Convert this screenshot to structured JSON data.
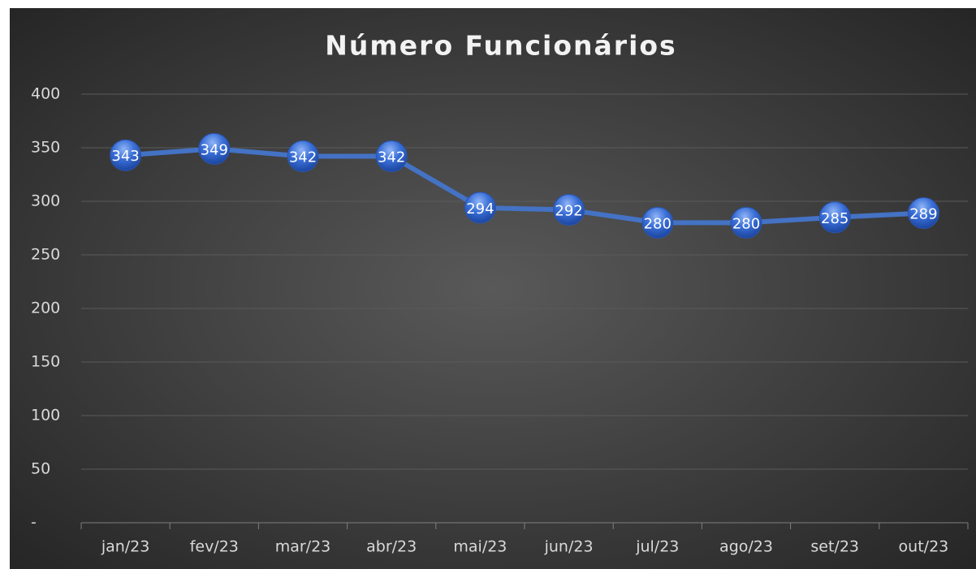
{
  "chart_data": {
    "type": "line",
    "title": "Número Funcionários",
    "categories": [
      "jan/23",
      "fev/23",
      "mar/23",
      "abr/23",
      "mai/23",
      "jun/23",
      "jul/23",
      "ago/23",
      "set/23",
      "out/23"
    ],
    "values": [
      343,
      349,
      342,
      342,
      294,
      292,
      280,
      280,
      285,
      289
    ],
    "color": "#4472c4",
    "ylim": [
      0,
      400
    ],
    "yticks": [
      {
        "value": 0,
        "label": "-"
      },
      50,
      100,
      150,
      200,
      250,
      300,
      350,
      400
    ],
    "grid": true
  }
}
